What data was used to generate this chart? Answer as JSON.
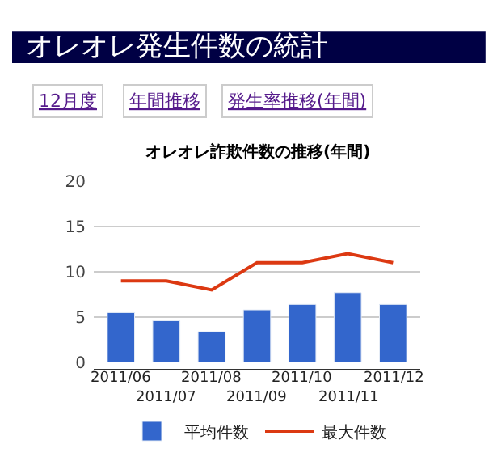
{
  "chart_data": {
    "type": "bar",
    "title": "オレオレ発生件数の統計",
    "subtitle": "オレオレ詐欺件数の推移(年間)",
    "annotations": [
      "12月度",
      "年間推移",
      "発生率推移(年間)"
    ],
    "categories": [
      "2011/06",
      "2011/07",
      "2011/08",
      "2011/09",
      "2011/10",
      "2011/11",
      "2011/12"
    ],
    "series": [
      {
        "name": "平均件数",
        "color": "#3366cc",
        "values": [
          5.5,
          4.6,
          3.4,
          5.8,
          6.4,
          7.7,
          6.4
        ]
      },
      {
        "name": "最大件数",
        "type": "line",
        "color": "#dc3912",
        "values": [
          9,
          9,
          8,
          11,
          11,
          12,
          11
        ]
      }
    ],
    "ylim": [
      0,
      20
    ],
    "yticks": [
      0,
      5,
      10,
      15,
      20
    ],
    "grid": "y",
    "legend": "bottom",
    "marker": "none",
    "line_style": "solid"
  }
}
